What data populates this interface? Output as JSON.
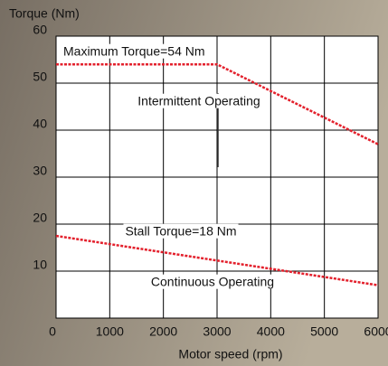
{
  "chart_data": {
    "type": "line",
    "ylabel": "Torque (Nm)",
    "xlabel": "Motor speed (rpm)",
    "xlim": [
      0,
      6000
    ],
    "xticks": [
      0,
      1000,
      2000,
      3000,
      4000,
      5000,
      6000
    ],
    "ylim": [
      0,
      60
    ],
    "yticks": [
      0,
      10,
      20,
      30,
      40,
      50,
      60
    ],
    "grid": true,
    "series": [
      {
        "color": "#e3202c",
        "x": [
          0,
          3000,
          6000
        ],
        "values": [
          54,
          54,
          37
        ]
      },
      {
        "color": "#e3202c",
        "x": [
          0,
          6000
        ],
        "values": [
          17.5,
          7
        ]
      }
    ],
    "annotations": [
      "Maximum Torque=54 Nm",
      "Intermittent Operating",
      "Stall Torque=18 Nm",
      "Continuous Operating"
    ]
  }
}
